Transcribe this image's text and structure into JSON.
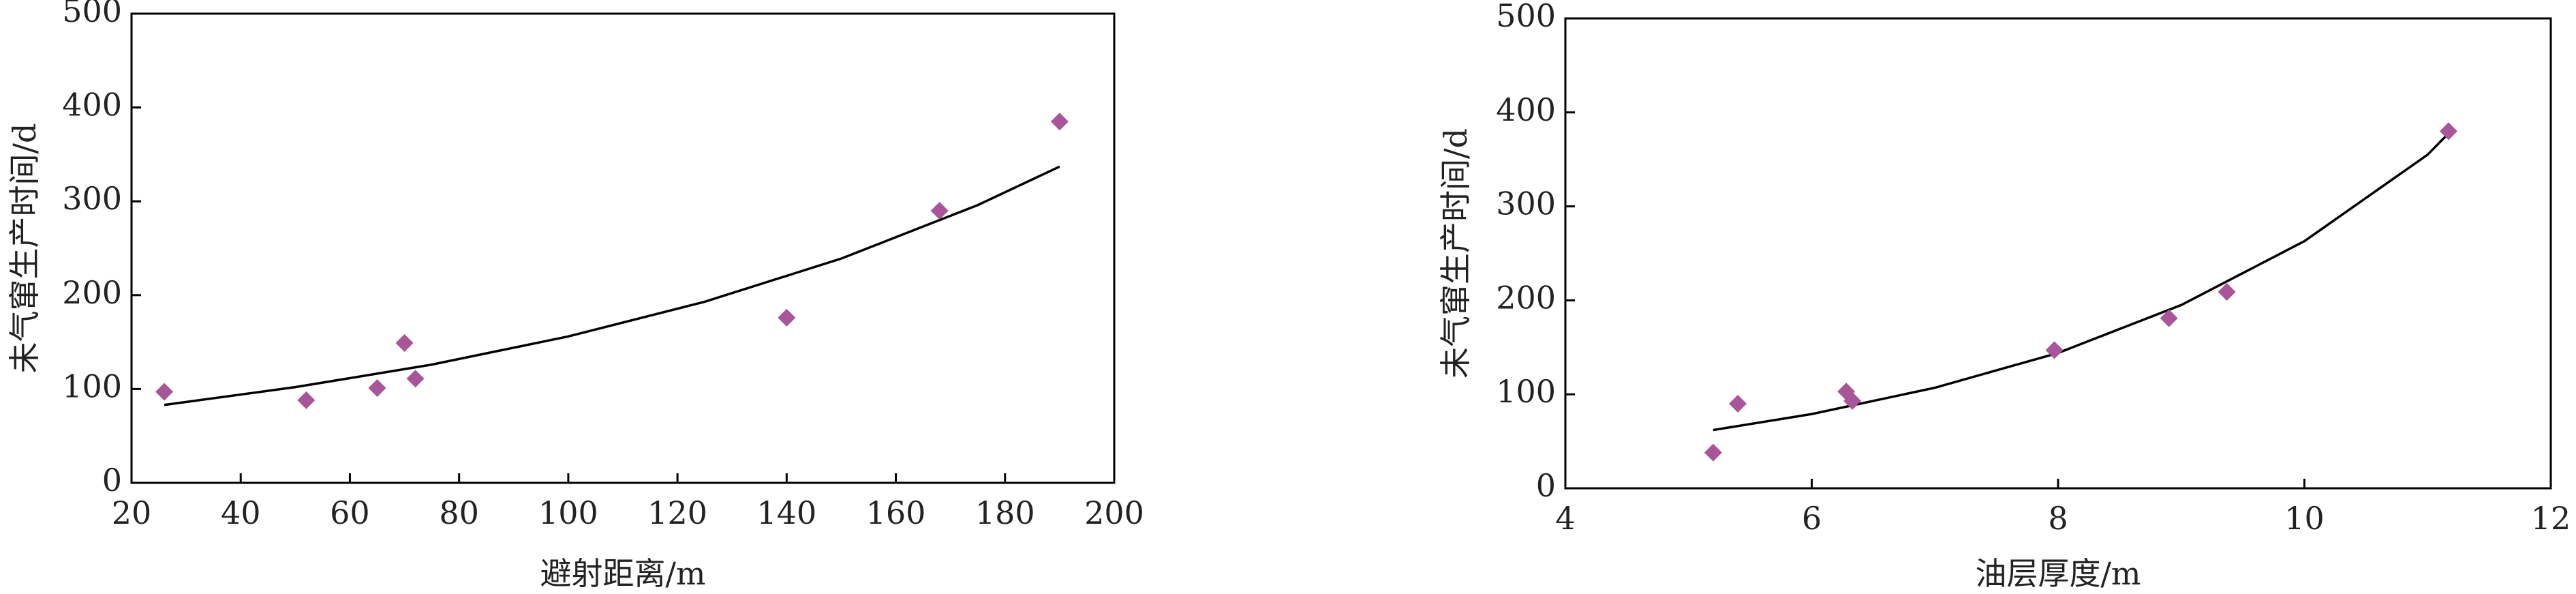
{
  "chart_data": [
    {
      "type": "scatter",
      "x_label": "避射距离/m",
      "y_label": "未气窜生产时间/d",
      "xlim": [
        20,
        200
      ],
      "xticks": [
        20,
        40,
        60,
        80,
        100,
        120,
        140,
        160,
        180,
        200
      ],
      "ylim": [
        0,
        500
      ],
      "yticks": [
        0,
        100,
        200,
        300,
        400,
        500
      ],
      "color": "#a8559a",
      "x": [
        26,
        52,
        65,
        70,
        72,
        140,
        168,
        190
      ],
      "values": [
        97,
        88,
        101,
        149,
        111,
        176,
        290,
        385
      ],
      "trend": {
        "x": [
          26,
          50,
          75,
          100,
          125,
          150,
          175,
          190
        ],
        "values": [
          83,
          102,
          126,
          156,
          193,
          239,
          296,
          337
        ]
      }
    },
    {
      "type": "scatter",
      "x_label": "油层厚度/m",
      "y_label": "未气窜生产时间/d",
      "xlim": [
        4,
        12
      ],
      "xticks": [
        4,
        6,
        8,
        10,
        12
      ],
      "ylim": [
        0,
        500
      ],
      "yticks": [
        0,
        100,
        200,
        300,
        400,
        500
      ],
      "color": "#a8559a",
      "x": [
        5.2,
        5.4,
        6.28,
        6.33,
        7.97,
        8.9,
        9.37,
        11.17
      ],
      "values": [
        38,
        90,
        103,
        93,
        147,
        181,
        209,
        380
      ],
      "trend": {
        "x": [
          5.2,
          6,
          7,
          8,
          9,
          10,
          11,
          11.15
        ],
        "values": [
          62,
          79,
          107,
          144,
          195,
          263,
          355,
          375
        ]
      }
    }
  ]
}
